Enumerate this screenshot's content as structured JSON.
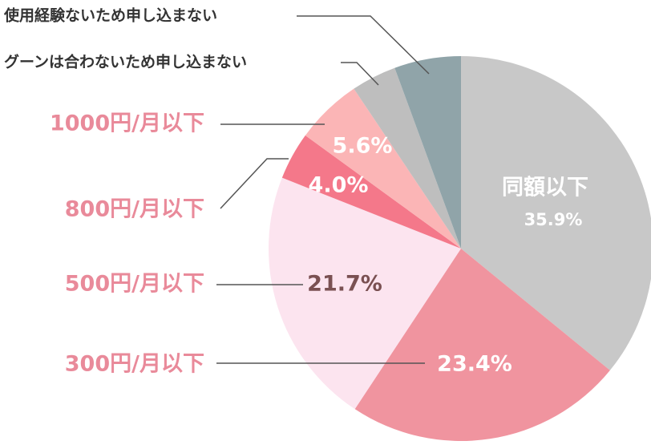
{
  "chart_data": {
    "type": "pie",
    "categories": [
      "同額以下",
      "300円/月以下",
      "500円/月以下",
      "800円/月以下",
      "1000円/月以下",
      "グーンは合わないため申し込まない",
      "使用経験ないため申し込まない"
    ],
    "values": [
      35.9,
      23.4,
      21.7,
      4.0,
      5.6,
      3.8,
      5.6
    ],
    "value_labels": [
      "35.9%",
      "23.4%",
      "21.7%",
      "4.0%",
      "5.6%",
      null,
      null
    ],
    "colors": [
      "#c8c8c8",
      "#f0949f",
      "#fce4ef",
      "#f4788a",
      "#fbb5b6",
      "#bebebe",
      "#90a4a9"
    ]
  }
}
